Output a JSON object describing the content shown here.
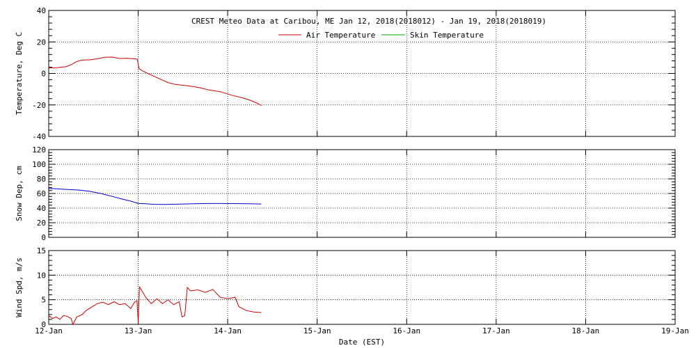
{
  "chart_data": {
    "type": "line",
    "title": "CREST Meteo Data at Caribou, ME   Jan 12, 2018(2018012) - Jan 19, 2018(2018019)",
    "xlabel": "Date (EST)",
    "x_tick_labels": [
      "12-Jan",
      "13-Jan",
      "14-Jan",
      "15-Jan",
      "16-Jan",
      "17-Jan",
      "18-Jan",
      "19-Jan"
    ],
    "xlim": [
      "2018-01-12T00:00",
      "2018-01-19T00:00"
    ],
    "grid": true,
    "panels": [
      {
        "ylabel": "Temperature, Deg C",
        "ylim": [
          -40,
          40
        ],
        "yticks": [
          -40,
          -20,
          0,
          20,
          40
        ],
        "legend": {
          "placement": "top-center"
        },
        "series": [
          {
            "name": "Air Temperature",
            "color": "#cc0000",
            "x": [
              "2018-01-12T00:00",
              "2018-01-12T02:00",
              "2018-01-12T03:30",
              "2018-01-12T04:30",
              "2018-01-12T06:00",
              "2018-01-12T07:30",
              "2018-01-12T09:00",
              "2018-01-12T11:00",
              "2018-01-12T13:00",
              "2018-01-12T15:00",
              "2018-01-12T17:00",
              "2018-01-12T19:00",
              "2018-01-12T21:00",
              "2018-01-12T23:00",
              "2018-01-12T23:45",
              "2018-01-13T00:15",
              "2018-01-13T01:00",
              "2018-01-13T03:00",
              "2018-01-13T06:00",
              "2018-01-13T08:00",
              "2018-01-13T10:00",
              "2018-01-13T13:00",
              "2018-01-13T16:00",
              "2018-01-13T19:00",
              "2018-01-13T22:00",
              "2018-01-14T01:00",
              "2018-01-14T04:00",
              "2018-01-14T06:00",
              "2018-01-14T08:00",
              "2018-01-14T09:00"
            ],
            "y": [
              3.5,
              3.6,
              4.0,
              4.2,
              5.5,
              7.5,
              8.5,
              8.6,
              9.3,
              10.3,
              10.4,
              9.5,
              9.6,
              9.3,
              9.0,
              3.0,
              1.8,
              -0.5,
              -3.7,
              -5.8,
              -7.0,
              -7.8,
              -8.8,
              -10.5,
              -11.6,
              -13.8,
              -15.5,
              -17.0,
              -19.0,
              -20.4
            ]
          },
          {
            "name": "Skin Temperature",
            "color": "#00aa00",
            "x": [],
            "y": []
          }
        ]
      },
      {
        "ylabel": "Snow Dep, cm",
        "ylim": [
          0,
          120
        ],
        "yticks": [
          0,
          20,
          40,
          60,
          80,
          100,
          120
        ],
        "series": [
          {
            "color": "#0000cc",
            "x": [
              "2018-01-12T00:00",
              "2018-01-12T02:00",
              "2018-01-12T05:00",
              "2018-01-12T08:00",
              "2018-01-12T11:00",
              "2018-01-12T14:00",
              "2018-01-12T17:00",
              "2018-01-12T20:00",
              "2018-01-12T22:00",
              "2018-01-13T00:00",
              "2018-01-13T02:00",
              "2018-01-13T04:00",
              "2018-01-13T07:00",
              "2018-01-13T10:00",
              "2018-01-13T13:00",
              "2018-01-13T16:00",
              "2018-01-13T19:00",
              "2018-01-13T22:00",
              "2018-01-14T01:00",
              "2018-01-14T04:00",
              "2018-01-14T07:00",
              "2018-01-14T09:00"
            ],
            "y": [
              66.8,
              66.5,
              65.5,
              64.8,
              63.0,
              60.0,
              56.0,
              52.0,
              49.5,
              46.5,
              46.0,
              45.2,
              45.0,
              45.3,
              45.7,
              46.1,
              46.3,
              46.3,
              46.2,
              46.1,
              45.8,
              45.6
            ]
          }
        ]
      },
      {
        "ylabel": "Wind Spd, m/s",
        "ylim": [
          0,
          15
        ],
        "yticks": [
          0,
          5,
          10,
          15
        ],
        "series": [
          {
            "color": "#cc0000",
            "x": [
              "2018-01-12T00:00",
              "2018-01-12T01:00",
              "2018-01-12T02:00",
              "2018-01-12T03:00",
              "2018-01-12T04:00",
              "2018-01-12T05:00",
              "2018-01-12T06:00",
              "2018-01-12T06:30",
              "2018-01-12T07:30",
              "2018-01-12T09:00",
              "2018-01-12T10:00",
              "2018-01-12T11:30",
              "2018-01-12T13:00",
              "2018-01-12T14:30",
              "2018-01-12T16:00",
              "2018-01-12T17:30",
              "2018-01-12T19:00",
              "2018-01-12T20:30",
              "2018-01-12T22:00",
              "2018-01-12T23:00",
              "2018-01-12T23:40",
              "2018-01-13T00:00",
              "2018-01-13T00:20",
              "2018-01-13T01:00",
              "2018-01-13T02:00",
              "2018-01-13T03:30",
              "2018-01-13T05:00",
              "2018-01-13T06:30",
              "2018-01-13T08:00",
              "2018-01-13T09:30",
              "2018-01-13T11:00",
              "2018-01-13T11:45",
              "2018-01-13T12:30",
              "2018-01-13T13:10",
              "2018-01-13T14:00",
              "2018-01-13T16:00",
              "2018-01-13T18:00",
              "2018-01-13T20:00",
              "2018-01-13T22:00",
              "2018-01-14T00:00",
              "2018-01-14T02:00",
              "2018-01-14T03:00",
              "2018-01-14T05:00",
              "2018-01-14T07:00",
              "2018-01-14T09:00"
            ],
            "y": [
              1.8,
              1.2,
              1.5,
              1.0,
              1.8,
              1.6,
              1.2,
              0.0,
              1.5,
              2.0,
              2.8,
              3.5,
              4.2,
              4.5,
              4.0,
              4.6,
              4.0,
              4.2,
              3.2,
              4.5,
              4.8,
              0.3,
              7.6,
              6.8,
              5.5,
              4.2,
              5.2,
              4.2,
              5.0,
              4.0,
              4.6,
              1.5,
              1.8,
              7.5,
              6.8,
              7.0,
              6.5,
              7.1,
              5.5,
              5.2,
              5.5,
              3.6,
              2.8,
              2.5,
              2.4
            ]
          }
        ]
      }
    ]
  }
}
